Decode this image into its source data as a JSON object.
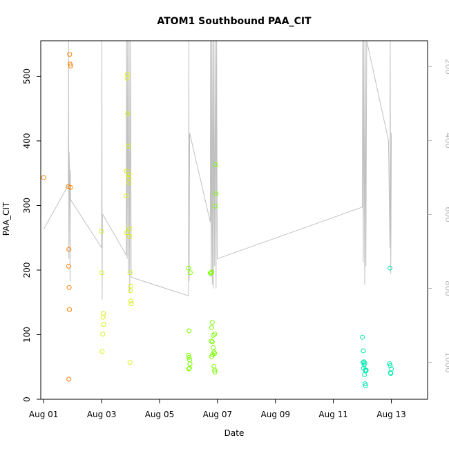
{
  "chart_data": {
    "type": "scatter",
    "title": "ATOM1 Southbound PAA_CIT",
    "xlabel": "Date",
    "ylabel": "PAA_CIT",
    "xlim": [
      -0.1,
      13.25
    ],
    "ylim": [
      0,
      555
    ],
    "x_ticks": [
      {
        "value": 0,
        "label": "Aug 01"
      },
      {
        "value": 2,
        "label": "Aug 03"
      },
      {
        "value": 4,
        "label": "Aug 05"
      },
      {
        "value": 6,
        "label": "Aug 07"
      },
      {
        "value": 8,
        "label": "Aug 09"
      },
      {
        "value": 10,
        "label": "Aug 11"
      },
      {
        "value": 12,
        "label": "Aug 13"
      }
    ],
    "y_ticks": [
      0,
      100,
      200,
      300,
      400,
      500
    ],
    "y2_ticks": [
      200,
      400,
      600,
      800,
      1000
    ],
    "y2_lim": [
      130,
      1100
    ],
    "y2_reversed": true,
    "series": [
      {
        "color": "#ff7f00",
        "points": [
          [
            0.0,
            343
          ],
          [
            0.85,
            329
          ],
          [
            0.86,
            206
          ],
          [
            0.87,
            232
          ],
          [
            0.88,
            173
          ],
          [
            0.89,
            139
          ],
          [
            0.87,
            31
          ],
          [
            0.9,
            534
          ],
          [
            0.91,
            519
          ],
          [
            0.93,
            516
          ],
          [
            0.92,
            328
          ]
        ]
      },
      {
        "color": "#d9f21a",
        "points": [
          [
            2.0,
            260
          ],
          [
            2.01,
            196
          ],
          [
            2.02,
            74
          ],
          [
            2.04,
            101
          ],
          [
            2.05,
            127
          ],
          [
            2.06,
            133
          ],
          [
            2.07,
            116
          ],
          [
            2.85,
            315
          ],
          [
            2.86,
            353
          ],
          [
            2.87,
            258
          ],
          [
            2.88,
            497
          ],
          [
            2.89,
            503
          ],
          [
            2.9,
            442
          ],
          [
            2.92,
            392
          ],
          [
            2.93,
            348
          ],
          [
            2.94,
            343
          ],
          [
            2.95,
            335
          ],
          [
            2.96,
            264
          ],
          [
            2.97,
            252
          ],
          [
            2.98,
            196
          ],
          [
            2.99,
            168
          ],
          [
            3.0,
            175
          ],
          [
            3.01,
            152
          ],
          [
            3.02,
            148
          ],
          [
            2.98,
            57
          ]
        ]
      },
      {
        "color": "#7cfc00",
        "points": [
          [
            5.0,
            203
          ],
          [
            5.02,
            106
          ],
          [
            5.0,
            68
          ],
          [
            5.02,
            65
          ],
          [
            5.04,
            61
          ],
          [
            5.05,
            55
          ],
          [
            5.03,
            48
          ],
          [
            5.01,
            47
          ],
          [
            5.06,
            196
          ],
          [
            5.75,
            195
          ],
          [
            5.78,
            196
          ],
          [
            5.8,
            197
          ],
          [
            5.82,
            119
          ],
          [
            5.8,
            111
          ],
          [
            5.78,
            90
          ],
          [
            5.82,
            89
          ],
          [
            5.85,
            99
          ],
          [
            5.9,
            101
          ],
          [
            5.85,
            80
          ],
          [
            5.88,
            73
          ],
          [
            5.8,
            66
          ],
          [
            5.83,
            69
          ],
          [
            5.9,
            71
          ],
          [
            5.88,
            51
          ],
          [
            5.9,
            45
          ],
          [
            5.91,
            42
          ],
          [
            5.93,
            363
          ],
          [
            5.95,
            318
          ],
          [
            5.92,
            299
          ]
        ]
      },
      {
        "color": "#00e8b0",
        "points": [
          [
            11.0,
            96
          ],
          [
            11.03,
            75
          ],
          [
            11.05,
            58
          ],
          [
            11.02,
            57
          ],
          [
            11.06,
            53
          ],
          [
            11.08,
            56
          ],
          [
            11.04,
            48
          ],
          [
            11.1,
            45
          ],
          [
            11.12,
            44
          ],
          [
            11.07,
            38
          ],
          [
            11.09,
            24
          ],
          [
            11.11,
            21
          ],
          [
            11.13,
            45
          ],
          [
            11.95,
            203
          ],
          [
            11.94,
            55
          ],
          [
            11.96,
            52
          ],
          [
            11.97,
            41
          ],
          [
            11.98,
            40
          ],
          [
            12.0,
            47
          ]
        ]
      }
    ],
    "secondary_line": {
      "color": "#c0c0c0",
      "y_axis": "right",
      "points": [
        [
          0.0,
          640
        ],
        [
          0.85,
          520
        ],
        [
          0.86,
          130
        ],
        [
          0.87,
          720
        ],
        [
          0.88,
          430
        ],
        [
          0.9,
          510
        ],
        [
          0.91,
          780
        ],
        [
          0.92,
          480
        ],
        [
          0.93,
          560
        ],
        [
          2.0,
          690
        ],
        [
          2.01,
          130
        ],
        [
          2.02,
          830
        ],
        [
          2.03,
          600
        ],
        [
          2.04,
          600
        ],
        [
          2.85,
          710
        ],
        [
          2.86,
          130
        ],
        [
          2.88,
          720
        ],
        [
          2.9,
          130
        ],
        [
          2.92,
          760
        ],
        [
          2.95,
          130
        ],
        [
          2.97,
          810
        ],
        [
          3.0,
          130
        ],
        [
          3.02,
          770
        ],
        [
          5.0,
          820
        ],
        [
          5.01,
          130
        ],
        [
          5.02,
          780
        ],
        [
          5.04,
          380
        ],
        [
          5.75,
          620
        ],
        [
          5.76,
          130
        ],
        [
          5.78,
          770
        ],
        [
          5.8,
          130
        ],
        [
          5.82,
          790
        ],
        [
          5.84,
          130
        ],
        [
          5.86,
          800
        ],
        [
          5.88,
          130
        ],
        [
          5.9,
          740
        ],
        [
          5.93,
          130
        ],
        [
          5.95,
          800
        ],
        [
          5.97,
          130
        ],
        [
          5.99,
          720
        ],
        [
          11.0,
          580
        ],
        [
          11.01,
          130
        ],
        [
          11.03,
          730
        ],
        [
          11.05,
          130
        ],
        [
          11.08,
          790
        ],
        [
          11.1,
          130
        ],
        [
          11.12,
          740
        ],
        [
          11.15,
          130
        ],
        [
          11.9,
          400
        ],
        [
          11.95,
          690
        ],
        [
          11.96,
          130
        ],
        [
          11.98,
          760
        ],
        [
          12.0,
          380
        ]
      ]
    }
  }
}
